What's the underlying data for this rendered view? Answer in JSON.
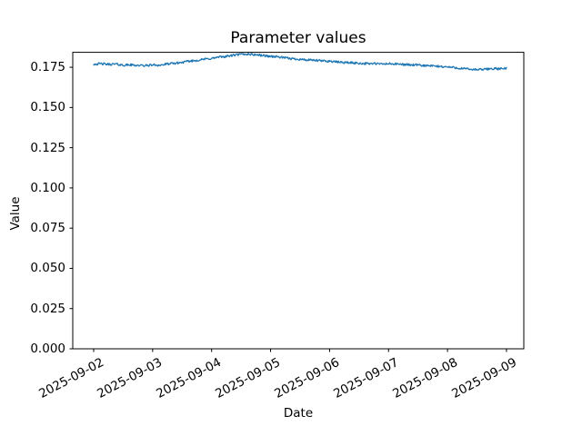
{
  "figure": {
    "background": "#ffffff",
    "axes_color": "#000000"
  },
  "chart_data": {
    "type": "line",
    "title": "Parameter values",
    "xlabel": "Date",
    "ylabel": "Value",
    "legend": null,
    "grid": false,
    "line_color": "#1f77b4",
    "x_tick_labels": [
      "2025-09-02",
      "2025-09-03",
      "2025-09-04",
      "2025-09-05",
      "2025-09-06",
      "2025-09-07",
      "2025-09-08",
      "2025-09-09"
    ],
    "x_tick_days": [
      0,
      1,
      2,
      3,
      4,
      5,
      6,
      7
    ],
    "y_tick_labels": [
      "0.000",
      "0.025",
      "0.050",
      "0.075",
      "0.100",
      "0.125",
      "0.150",
      "0.175"
    ],
    "y_ticks": [
      0.0,
      0.025,
      0.05,
      0.075,
      0.1,
      0.125,
      0.15,
      0.175
    ],
    "xlim_days": [
      -0.3546,
      7.2935
    ],
    "ylim": [
      0,
      0.1843
    ],
    "series": [
      {
        "name": "parameter",
        "x_days": [
          0,
          0.125,
          0.25,
          0.375,
          0.5,
          0.625,
          0.75,
          0.875,
          1,
          1.125,
          1.25,
          1.375,
          1.5,
          1.625,
          1.75,
          1.875,
          2,
          2.125,
          2.25,
          2.375,
          2.5,
          2.625,
          2.75,
          2.875,
          3,
          3.125,
          3.25,
          3.375,
          3.5,
          3.625,
          3.75,
          3.875,
          4,
          4.125,
          4.25,
          4.375,
          4.5,
          4.625,
          4.75,
          4.875,
          5,
          5.125,
          5.25,
          5.375,
          5.5,
          5.625,
          5.75,
          5.875,
          6,
          6.125,
          6.25,
          6.375,
          6.5,
          6.625,
          6.75,
          6.875,
          7
        ],
        "values": [
          0.177,
          0.1772,
          0.1768,
          0.177,
          0.1763,
          0.1765,
          0.1762,
          0.176,
          0.1765,
          0.1763,
          0.177,
          0.1775,
          0.178,
          0.1788,
          0.1793,
          0.18,
          0.1805,
          0.1813,
          0.1818,
          0.1825,
          0.183,
          0.1832,
          0.1828,
          0.1823,
          0.1818,
          0.1815,
          0.1808,
          0.1803,
          0.18,
          0.1795,
          0.1793,
          0.179,
          0.1788,
          0.1783,
          0.178,
          0.1778,
          0.1775,
          0.1773,
          0.1773,
          0.177,
          0.1772,
          0.177,
          0.1768,
          0.1765,
          0.1763,
          0.176,
          0.1758,
          0.1755,
          0.1752,
          0.1748,
          0.1742,
          0.1738,
          0.1735,
          0.1737,
          0.1742,
          0.174,
          0.1743
        ]
      }
    ]
  }
}
